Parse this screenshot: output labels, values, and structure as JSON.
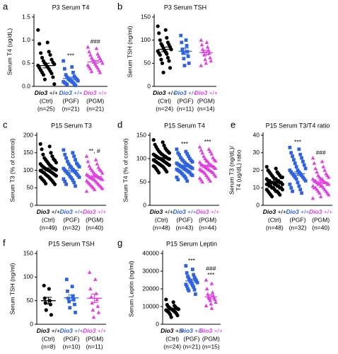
{
  "chart_data": [
    {
      "type": "dot",
      "panel": "a",
      "title": "P3 Serum T4",
      "ylabel": "Serum T4 (ug/dL)",
      "ylim": [
        0,
        1.5
      ],
      "yticks": [
        {
          "value": 0,
          "label": "0.0"
        },
        0.5,
        {
          "value": 1,
          "label": "1.0"
        },
        1.5
      ],
      "groups": [
        {
          "gene": "Dio3",
          "genotype": "+/+",
          "tag": "(Ctrl)",
          "n": "(n=25)",
          "color": "#000000",
          "marker": "circle",
          "mean": 0.45,
          "sem": 0.05,
          "values": [
            1.22,
            0.95,
            0.92,
            0.75,
            0.72,
            0.68,
            0.62,
            0.58,
            0.55,
            0.52,
            0.5,
            0.48,
            0.46,
            0.45,
            0.42,
            0.4,
            0.38,
            0.35,
            0.33,
            0.3,
            0.28,
            0.25,
            0.2,
            0.15,
            0.05
          ]
        },
        {
          "gene": "Dio3",
          "genotype": "+/+",
          "tag": "(PGF)",
          "n": "(n=21)",
          "color": "#2e62e0",
          "marker": "square",
          "mean": 0.17,
          "sem": 0.03,
          "values": [
            0.55,
            0.42,
            0.38,
            0.3,
            0.25,
            0.22,
            0.2,
            0.18,
            0.16,
            0.15,
            0.14,
            0.12,
            0.12,
            0.1,
            0.1,
            0.08,
            0.08,
            0.06,
            0.05,
            0.04,
            0.02
          ]
        },
        {
          "gene": "Dio3",
          "genotype": "+/+",
          "tag": "(PGM)",
          "n": "(n=21)",
          "color": "#e040e0",
          "marker": "triangle",
          "mean": 0.53,
          "sem": 0.03,
          "values": [
            0.85,
            0.82,
            0.75,
            0.7,
            0.68,
            0.65,
            0.62,
            0.6,
            0.58,
            0.55,
            0.53,
            0.5,
            0.48,
            0.46,
            0.44,
            0.42,
            0.4,
            0.38,
            0.35,
            0.32,
            0.3
          ]
        }
      ],
      "annotations": [
        {
          "text": "***",
          "group": 1,
          "color": "#2a2ab0"
        },
        {
          "text": "###",
          "group": 2,
          "color": "#8a3a9a"
        }
      ]
    },
    {
      "type": "dot",
      "panel": "b",
      "title": "P3 Serum TSH",
      "ylabel": "Serum TSH (ng/ml)",
      "ylim": [
        0,
        150
      ],
      "yticks": [
        0,
        50,
        100,
        150
      ],
      "groups": [
        {
          "gene": "Dio3",
          "genotype": "+/+",
          "tag": "(Ctrl)",
          "n": "(n=24)",
          "color": "#000000",
          "marker": "circle",
          "mean": 80,
          "sem": 5,
          "values": [
            130,
            122,
            115,
            105,
            100,
            95,
            92,
            90,
            88,
            85,
            82,
            80,
            78,
            76,
            74,
            72,
            70,
            68,
            62,
            58,
            55,
            50,
            40,
            30
          ]
        },
        {
          "gene": "Dio3",
          "genotype": "+/+",
          "tag": "(PGF)",
          "n": "(n=11)",
          "color": "#2e62e0",
          "marker": "square",
          "mean": 76,
          "sem": 7,
          "values": [
            110,
            100,
            95,
            88,
            80,
            75,
            72,
            65,
            60,
            50,
            45
          ]
        },
        {
          "gene": "Dio3",
          "genotype": "+/+",
          "tag": "(PGM)",
          "n": "(n=14)",
          "color": "#e040e0",
          "marker": "triangle",
          "mean": 73,
          "sem": 5,
          "values": [
            100,
            95,
            90,
            85,
            80,
            78,
            75,
            72,
            68,
            62,
            58,
            55,
            50,
            45
          ]
        }
      ],
      "annotations": []
    },
    {
      "type": "dot",
      "panel": "c",
      "title": "P15 Serum T3",
      "ylabel": "Serum T3 (% of control)",
      "ylim": [
        0,
        200
      ],
      "yticks": [
        0,
        50,
        100,
        150,
        200
      ],
      "groups": [
        {
          "gene": "Dio3",
          "genotype": "+/+",
          "tag": "(Ctrl)",
          "n": "(n=49)",
          "color": "#000000",
          "marker": "circle",
          "mean": 103,
          "sem": 4,
          "values": [
            175,
            168,
            160,
            150,
            145,
            140,
            135,
            132,
            130,
            128,
            125,
            122,
            120,
            118,
            115,
            113,
            112,
            110,
            108,
            107,
            105,
            104,
            103,
            102,
            101,
            100,
            99,
            98,
            97,
            95,
            94,
            93,
            92,
            90,
            88,
            87,
            85,
            84,
            82,
            80,
            78,
            76,
            74,
            72,
            70,
            68,
            65,
            62,
            60
          ]
        },
        {
          "gene": "Dio3",
          "genotype": "+/+",
          "tag": "(PGF)",
          "n": "(n=32)",
          "color": "#2e62e0",
          "marker": "square",
          "mean": 100,
          "sem": 5,
          "values": [
            158,
            150,
            145,
            140,
            135,
            130,
            125,
            120,
            118,
            115,
            112,
            110,
            108,
            105,
            102,
            100,
            98,
            96,
            94,
            92,
            90,
            88,
            85,
            82,
            80,
            78,
            75,
            72,
            68,
            65,
            60,
            55
          ]
        },
        {
          "gene": "Dio3",
          "genotype": "+/+",
          "tag": "(PGM)",
          "n": "(n=40)",
          "color": "#e040e0",
          "marker": "triangle",
          "mean": 82,
          "sem": 3,
          "values": [
            140,
            130,
            125,
            118,
            112,
            108,
            105,
            102,
            100,
            98,
            95,
            92,
            90,
            88,
            86,
            85,
            84,
            82,
            80,
            79,
            78,
            77,
            76,
            75,
            74,
            72,
            70,
            68,
            66,
            64,
            62,
            60,
            58,
            56,
            54,
            52,
            50,
            48,
            45,
            40
          ]
        }
      ],
      "annotations": [
        {
          "text": "**, #",
          "group": 2,
          "color": "#8a3a9a"
        }
      ]
    },
    {
      "type": "dot",
      "panel": "d",
      "title": "P15 Serum T4",
      "ylabel": "Serum T4 (% of control)",
      "ylim": [
        0,
        150
      ],
      "yticks": [
        0,
        50,
        100,
        150
      ],
      "groups": [
        {
          "gene": "Dio3",
          "genotype": "+/+",
          "tag": "(Ctrl)",
          "n": "(n=48)",
          "color": "#000000",
          "marker": "circle",
          "mean": 100,
          "sem": 2,
          "values": [
            140,
            135,
            130,
            128,
            125,
            122,
            120,
            118,
            116,
            115,
            113,
            112,
            110,
            109,
            108,
            107,
            106,
            105,
            104,
            103,
            102,
            101,
            100,
            100,
            99,
            98,
            97,
            96,
            95,
            94,
            93,
            92,
            91,
            90,
            89,
            88,
            87,
            86,
            85,
            84,
            83,
            82,
            80,
            78,
            76,
            74,
            72,
            70
          ]
        },
        {
          "gene": "Dio3",
          "genotype": "+/+",
          "tag": "(PGF)",
          "n": "(n=43)",
          "color": "#2e62e0",
          "marker": "square",
          "mean": 84,
          "sem": 2,
          "values": [
            120,
            115,
            112,
            110,
            108,
            105,
            102,
            100,
            98,
            96,
            95,
            93,
            92,
            90,
            89,
            88,
            87,
            86,
            85,
            84,
            83,
            82,
            81,
            80,
            79,
            78,
            77,
            76,
            75,
            74,
            73,
            72,
            71,
            70,
            68,
            66,
            65,
            64,
            62,
            60,
            58,
            55,
            52
          ]
        },
        {
          "gene": "Dio3",
          "genotype": "+/+",
          "tag": "(PGM)",
          "n": "(n=44)",
          "color": "#e040e0",
          "marker": "triangle",
          "mean": 84,
          "sem": 2,
          "values": [
            125,
            120,
            118,
            115,
            112,
            110,
            105,
            102,
            100,
            98,
            96,
            95,
            94,
            92,
            90,
            88,
            87,
            86,
            85,
            84,
            83,
            82,
            81,
            80,
            79,
            78,
            77,
            76,
            75,
            74,
            73,
            72,
            71,
            70,
            68,
            66,
            64,
            62,
            60,
            58,
            56,
            54,
            52,
            50
          ]
        }
      ],
      "annotations": [
        {
          "text": "***",
          "group": 1,
          "color": "#2a2ab0"
        },
        {
          "text": "***",
          "group": 2,
          "color": "#8a3a9a"
        }
      ]
    },
    {
      "type": "dot",
      "panel": "e",
      "title": "P15 Serum T3/T4 ratio",
      "ylabel": [
        "Serum T3 (ng/dL)/",
        "T4 (ug/dL) ratio"
      ],
      "ylim": [
        0,
        40
      ],
      "yticks": [
        0,
        10,
        20,
        30,
        40
      ],
      "groups": [
        {
          "gene": "Dio3",
          "genotype": "+/+",
          "tag": "(Ctrl)",
          "n": "(n=48)",
          "color": "#000000",
          "marker": "circle",
          "mean": 13,
          "sem": 0.5,
          "values": [
            22,
            21,
            20,
            19,
            19,
            18,
            18,
            17,
            17,
            16,
            16,
            16,
            15,
            15,
            15,
            14,
            14,
            14,
            14,
            13,
            13,
            13,
            13,
            13,
            12,
            12,
            12,
            12,
            12,
            11,
            11,
            11,
            11,
            10,
            10,
            10,
            10,
            9,
            9,
            9,
            8,
            8,
            8,
            7,
            7,
            6,
            6,
            5
          ]
        },
        {
          "gene": "Dio3",
          "genotype": "+/+",
          "tag": "(PGF)",
          "n": "(n=32)",
          "color": "#2e62e0",
          "marker": "square",
          "mean": 18,
          "sem": 1,
          "values": [
            33,
            32,
            30,
            29,
            28,
            27,
            26,
            25,
            24,
            23,
            22,
            21,
            20,
            20,
            19,
            19,
            18,
            18,
            17,
            17,
            16,
            16,
            15,
            15,
            14,
            13,
            12,
            11,
            10,
            9,
            8,
            7
          ]
        },
        {
          "gene": "Dio3",
          "genotype": "+/+",
          "tag": "(PGM)",
          "n": "(n=40)",
          "color": "#e040e0",
          "marker": "triangle",
          "mean": 13,
          "sem": 0.7,
          "values": [
            27,
            25,
            24,
            22,
            21,
            20,
            19,
            18,
            17,
            17,
            16,
            16,
            15,
            15,
            15,
            14,
            14,
            14,
            13,
            13,
            13,
            12,
            12,
            12,
            12,
            11,
            11,
            11,
            10,
            10,
            10,
            9,
            9,
            8,
            8,
            7,
            7,
            6,
            5,
            4
          ]
        }
      ],
      "annotations": [
        {
          "text": "***",
          "group": 1,
          "color": "#2a2ab0"
        },
        {
          "text": "###",
          "group": 2,
          "color": "#8a3a9a"
        }
      ]
    },
    {
      "type": "dot",
      "panel": "f",
      "title": "P15 Serum TSH",
      "ylabel": "Serum TSH (ng/ml)",
      "ylim": [
        0,
        150
      ],
      "yticks": [
        0,
        50,
        100,
        150
      ],
      "groups": [
        {
          "gene": "Dio3",
          "genotype": "+/+",
          "tag": "(Ctrl)",
          "n": "(n=8)",
          "color": "#000000",
          "marker": "circle",
          "mean": 50,
          "sem": 7,
          "values": [
            82,
            75,
            55,
            50,
            45,
            42,
            30,
            20
          ]
        },
        {
          "gene": "Dio3",
          "genotype": "+/+",
          "tag": "(PGF)",
          "n": "(n=10)",
          "color": "#2e62e0",
          "marker": "square",
          "mean": 56,
          "sem": 6,
          "values": [
            95,
            80,
            70,
            60,
            55,
            52,
            48,
            42,
            35,
            25
          ]
        },
        {
          "gene": "Dio3",
          "genotype": "+/+",
          "tag": "(PGM)",
          "n": "(n=11)",
          "color": "#e040e0",
          "marker": "triangle",
          "mean": 55,
          "sem": 9,
          "values": [
            110,
            95,
            75,
            65,
            58,
            52,
            45,
            38,
            30,
            25,
            15
          ]
        }
      ],
      "annotations": []
    },
    {
      "type": "dot",
      "panel": "g",
      "title": "P15 Serum Leptin",
      "ylabel": "Serum Leptin (ng/ml)",
      "ylim": [
        0,
        40000
      ],
      "yticks": [
        0,
        10000,
        20000,
        30000,
        40000
      ],
      "groups": [
        {
          "gene": "Dio3",
          "genotype": "+/+",
          "tag": "(Ctrl)",
          "n": "(n=24)",
          "color": "#000000",
          "marker": "circle",
          "mean": 8500,
          "sem": 450,
          "values": [
            14000,
            12500,
            11000,
            10500,
            10000,
            9800,
            9500,
            9200,
            9000,
            8800,
            8600,
            8500,
            8300,
            8000,
            7800,
            7500,
            7200,
            7000,
            6800,
            6500,
            6000,
            5500,
            5000,
            4000
          ]
        },
        {
          "gene": "Dio3",
          "genotype": "+/+",
          "tag": "(PGF)",
          "n": "(n=21)",
          "color": "#2e62e0",
          "marker": "square",
          "mean": 24500,
          "sem": 900,
          "values": [
            33000,
            31000,
            29000,
            28000,
            27000,
            26500,
            26000,
            25500,
            25000,
            24500,
            24000,
            23500,
            23000,
            22500,
            22000,
            21500,
            21000,
            20000,
            19500,
            19000,
            17000
          ]
        },
        {
          "gene": "Dio3",
          "genotype": "+/+",
          "tag": "(PGM)",
          "n": "(n=15)",
          "color": "#e040e0",
          "marker": "triangle",
          "mean": 15500,
          "sem": 1100,
          "values": [
            25000,
            23000,
            20000,
            18000,
            17000,
            16000,
            15500,
            15000,
            14500,
            14000,
            13500,
            12500,
            11500,
            10500,
            9000
          ]
        }
      ],
      "annotations": [
        {
          "text": "***",
          "group": 1,
          "color": "#2a2ab0"
        },
        {
          "text": "***",
          "group": 2,
          "color": "#8a3a9a"
        },
        {
          "text": "###",
          "group": 2,
          "color": "#8a3a9a"
        }
      ]
    }
  ]
}
